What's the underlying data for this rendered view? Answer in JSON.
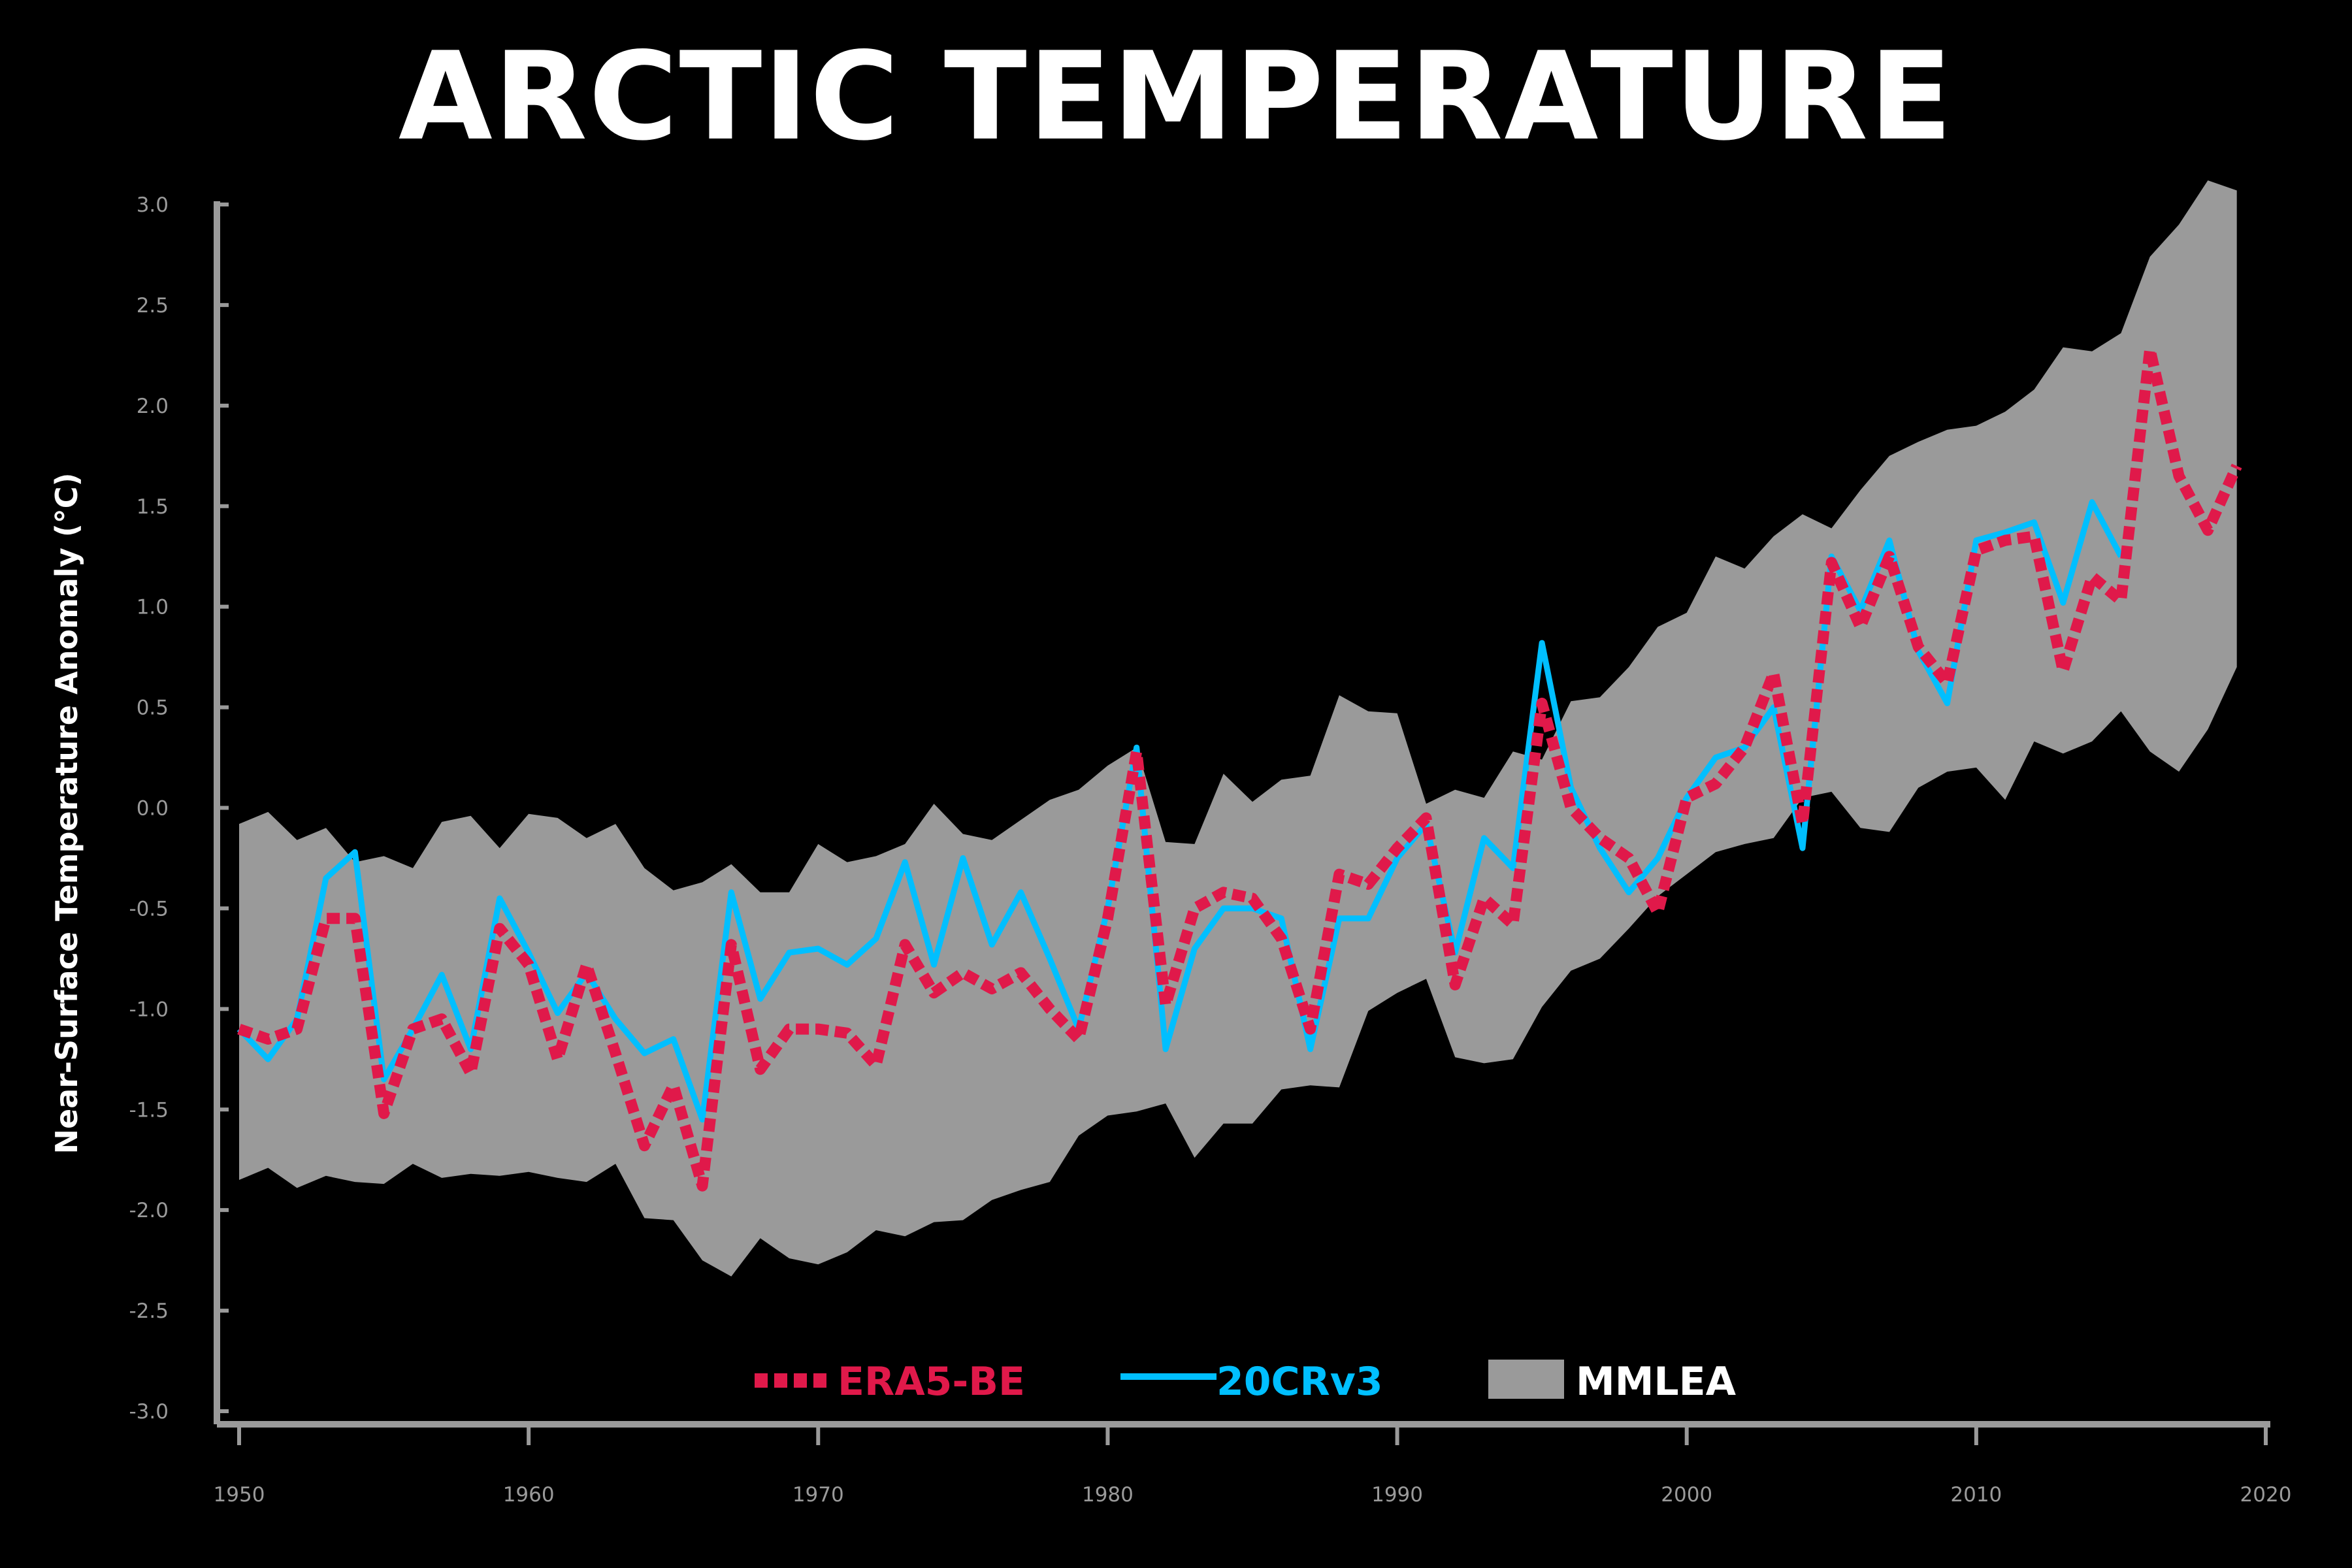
{
  "chart_data": {
    "type": "line",
    "title": "ARCTIC TEMPERATURE",
    "xlabel": "",
    "ylabel": "Near-Surface Temperature Anomaly (°C)",
    "xlim": [
      1950,
      2020
    ],
    "ylim": [
      -3.0,
      3.0
    ],
    "x_ticks": [
      "1950",
      "1960",
      "1970",
      "1980",
      "1990",
      "2000",
      "2010",
      "2020"
    ],
    "y_ticks": [
      "3.0",
      "2.5",
      "2.0",
      "1.5",
      "1.0",
      "0.5",
      "0.0",
      "-0.5",
      "-1.0",
      "-1.5",
      "-2.0",
      "-2.5",
      "-3.0"
    ],
    "grid": false,
    "legend_position": "bottom-center",
    "legend": [
      {
        "label": "ERA5-BE",
        "color": "#e0194a",
        "style": "dashed"
      },
      {
        "label": "20CRv3",
        "color": "#00bfff",
        "style": "solid"
      },
      {
        "label": "MMLEA",
        "color": "#9a9a9a",
        "style": "band"
      }
    ],
    "band": {
      "name": "MMLEA",
      "color": "#9a9a9a",
      "x": [
        1950,
        1951,
        1952,
        1953,
        1954,
        1955,
        1956,
        1957,
        1958,
        1959,
        1960,
        1961,
        1962,
        1963,
        1964,
        1965,
        1966,
        1967,
        1968,
        1969,
        1970,
        1971,
        1972,
        1973,
        1974,
        1975,
        1976,
        1977,
        1978,
        1979,
        1980,
        1981,
        1982,
        1983,
        1984,
        1985,
        1986,
        1987,
        1988,
        1989,
        1990,
        1991,
        1992,
        1993,
        1994,
        1995,
        1996,
        1997,
        1998,
        1999,
        2000,
        2001,
        2002,
        2003,
        2004,
        2005,
        2006,
        2007,
        2008,
        2009,
        2010,
        2011,
        2012,
        2013,
        2014,
        2015,
        2016,
        2017,
        2018,
        2019
      ],
      "upper": [
        -0.08,
        -0.02,
        -0.16,
        -0.1,
        -0.27,
        -0.24,
        -0.3,
        -0.07,
        -0.04,
        -0.2,
        -0.03,
        -0.05,
        -0.15,
        -0.08,
        -0.3,
        -0.41,
        -0.37,
        -0.28,
        -0.42,
        -0.42,
        -0.18,
        -0.27,
        -0.24,
        -0.18,
        0.02,
        -0.13,
        -0.16,
        -0.06,
        0.04,
        0.09,
        0.21,
        0.3,
        -0.17,
        -0.18,
        0.17,
        0.03,
        0.14,
        0.16,
        0.56,
        0.48,
        0.47,
        0.02,
        0.09,
        0.05,
        0.28,
        0.24,
        0.53,
        0.55,
        0.7,
        0.9,
        0.97,
        1.25,
        1.19,
        1.35,
        1.46,
        1.39,
        1.58,
        1.75,
        1.82,
        1.88,
        1.9,
        1.97,
        2.08,
        2.29,
        2.27,
        2.36,
        2.74,
        2.9,
        3.12,
        3.07
      ],
      "lower": [
        -1.85,
        -1.79,
        -1.89,
        -1.83,
        -1.86,
        -1.87,
        -1.77,
        -1.84,
        -1.82,
        -1.83,
        -1.81,
        -1.84,
        -1.86,
        -1.77,
        -2.04,
        -2.05,
        -2.25,
        -2.33,
        -2.14,
        -2.24,
        -2.27,
        -2.21,
        -2.1,
        -2.13,
        -2.06,
        -2.05,
        -1.95,
        -1.9,
        -1.86,
        -1.63,
        -1.53,
        -1.51,
        -1.47,
        -1.74,
        -1.57,
        -1.57,
        -1.4,
        -1.38,
        -1.39,
        -1.01,
        -0.92,
        -0.85,
        -1.24,
        -1.27,
        -1.25,
        -0.99,
        -0.81,
        -0.75,
        -0.6,
        -0.44,
        -0.33,
        -0.22,
        -0.18,
        -0.15,
        0.05,
        0.08,
        -0.1,
        -0.12,
        0.1,
        0.18,
        0.2,
        0.04,
        0.33,
        0.27,
        0.33,
        0.48,
        0.28,
        0.18,
        0.39,
        0.7
      ]
    },
    "series": [
      {
        "name": "ERA5-BE",
        "color": "#e0194a",
        "style": "dashed",
        "x": [
          1950,
          1951,
          1952,
          1953,
          1954,
          1955,
          1956,
          1957,
          1958,
          1959,
          1960,
          1961,
          1962,
          1963,
          1964,
          1965,
          1966,
          1967,
          1968,
          1969,
          1970,
          1971,
          1972,
          1973,
          1974,
          1975,
          1976,
          1977,
          1978,
          1979,
          1980,
          1981,
          1982,
          1983,
          1984,
          1985,
          1986,
          1987,
          1988,
          1989,
          1990,
          1991,
          1992,
          1993,
          1994,
          1995,
          1996,
          1997,
          1998,
          1999,
          2000,
          2001,
          2002,
          2003,
          2004,
          2005,
          2006,
          2007,
          2008,
          2009,
          2010,
          2011,
          2012,
          2013,
          2014,
          2015,
          2016,
          2017,
          2018,
          2019
        ],
        "values": [
          -1.1,
          -1.15,
          -1.1,
          -0.55,
          -0.55,
          -1.52,
          -1.1,
          -1.05,
          -1.32,
          -0.6,
          -0.78,
          -1.25,
          -0.78,
          -1.22,
          -1.68,
          -1.38,
          -1.88,
          -0.68,
          -1.3,
          -1.1,
          -1.1,
          -1.12,
          -1.28,
          -0.68,
          -0.92,
          -0.82,
          -0.9,
          -0.82,
          -1.0,
          -1.15,
          -0.55,
          0.28,
          -0.98,
          -0.5,
          -0.42,
          -0.45,
          -0.65,
          -1.1,
          -0.33,
          -0.38,
          -0.2,
          -0.05,
          -0.88,
          -0.45,
          -0.58,
          0.52,
          0.0,
          -0.15,
          -0.25,
          -0.52,
          0.05,
          0.12,
          0.3,
          0.67,
          -0.08,
          1.22,
          0.9,
          1.25,
          0.8,
          0.62,
          1.28,
          1.33,
          1.35,
          0.68,
          1.15,
          1.03,
          2.28,
          1.65,
          1.38,
          1.7
        ]
      },
      {
        "name": "20CRv3",
        "color": "#00bfff",
        "style": "solid",
        "x": [
          1950,
          1951,
          1952,
          1953,
          1954,
          1955,
          1956,
          1957,
          1958,
          1959,
          1960,
          1961,
          1962,
          1963,
          1964,
          1965,
          1966,
          1967,
          1968,
          1969,
          1970,
          1971,
          1972,
          1973,
          1974,
          1975,
          1976,
          1977,
          1978,
          1979,
          1980,
          1981,
          1982,
          1983,
          1984,
          1985,
          1986,
          1987,
          1988,
          1989,
          1990,
          1991,
          1992,
          1993,
          1994,
          1995,
          1996,
          1997,
          1998,
          1999,
          2000,
          2001,
          2002,
          2003,
          2004,
          2005,
          2006,
          2007,
          2008,
          2009,
          2010,
          2011,
          2012,
          2013,
          2014,
          2015
        ],
        "values": [
          -1.1,
          -1.25,
          -1.05,
          -0.35,
          -0.22,
          -1.35,
          -1.1,
          -0.83,
          -1.2,
          -0.45,
          -0.72,
          -1.02,
          -0.82,
          -1.05,
          -1.22,
          -1.15,
          -1.55,
          -0.42,
          -0.95,
          -0.72,
          -0.7,
          -0.78,
          -0.65,
          -0.27,
          -0.78,
          -0.25,
          -0.68,
          -0.42,
          -0.75,
          -1.1,
          -0.5,
          0.3,
          -1.2,
          -0.7,
          -0.5,
          -0.5,
          -0.55,
          -1.2,
          -0.55,
          -0.55,
          -0.25,
          -0.08,
          -0.72,
          -0.15,
          -0.3,
          0.82,
          0.1,
          -0.2,
          -0.42,
          -0.25,
          0.05,
          0.25,
          0.3,
          0.5,
          -0.2,
          1.25,
          0.98,
          1.33,
          0.78,
          0.52,
          1.33,
          1.37,
          1.42,
          1.02,
          1.52,
          1.25
        ]
      }
    ]
  }
}
